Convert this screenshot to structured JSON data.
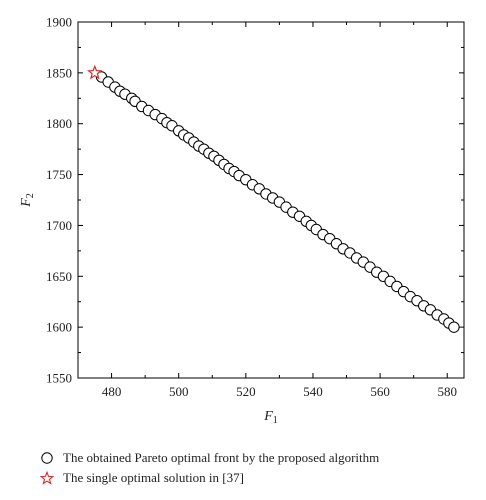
{
  "chart_data": {
    "type": "scatter",
    "xlabel": "F",
    "xlabel_sub": "1",
    "ylabel": "F",
    "ylabel_sub": "2",
    "xlim": [
      470,
      585
    ],
    "ylim": [
      1550,
      1900
    ],
    "xticks": [
      480,
      500,
      520,
      540,
      560,
      580
    ],
    "yticks": [
      1550,
      1600,
      1650,
      1700,
      1750,
      1800,
      1850,
      1900
    ],
    "grid": false,
    "legend_position": "bottom",
    "series": [
      {
        "name": "The obtained Pareto optimal front by the proposed algorithm",
        "marker": "circle",
        "color": "#000000",
        "points": [
          [
            477,
            1846
          ],
          [
            479,
            1841
          ],
          [
            481,
            1836
          ],
          [
            482.5,
            1832
          ],
          [
            484,
            1829
          ],
          [
            486,
            1825
          ],
          [
            487,
            1822
          ],
          [
            489,
            1817
          ],
          [
            491,
            1813
          ],
          [
            493,
            1809
          ],
          [
            495,
            1805
          ],
          [
            496.5,
            1801
          ],
          [
            498,
            1798
          ],
          [
            500,
            1793
          ],
          [
            501.5,
            1789
          ],
          [
            503,
            1786
          ],
          [
            504.5,
            1782
          ],
          [
            506,
            1778
          ],
          [
            507.5,
            1775
          ],
          [
            509,
            1771
          ],
          [
            510.5,
            1768
          ],
          [
            512,
            1764
          ],
          [
            513.5,
            1760
          ],
          [
            515,
            1756
          ],
          [
            516.5,
            1753
          ],
          [
            518,
            1749
          ],
          [
            520,
            1745
          ],
          [
            522,
            1740
          ],
          [
            524,
            1736
          ],
          [
            526,
            1731
          ],
          [
            528,
            1727
          ],
          [
            530,
            1723
          ],
          [
            532,
            1718
          ],
          [
            534,
            1713
          ],
          [
            536,
            1709
          ],
          [
            538,
            1704
          ],
          [
            539.5,
            1700
          ],
          [
            541,
            1696
          ],
          [
            543,
            1691
          ],
          [
            545,
            1687
          ],
          [
            547,
            1682
          ],
          [
            549,
            1677
          ],
          [
            551,
            1673
          ],
          [
            553,
            1668
          ],
          [
            555,
            1664
          ],
          [
            557,
            1659
          ],
          [
            559,
            1654
          ],
          [
            561,
            1650
          ],
          [
            563,
            1645
          ],
          [
            565,
            1640
          ],
          [
            567,
            1635
          ],
          [
            569,
            1630
          ],
          [
            571,
            1626
          ],
          [
            573,
            1621
          ],
          [
            575,
            1617
          ],
          [
            577,
            1612
          ],
          [
            579,
            1608
          ],
          [
            580.5,
            1604
          ],
          [
            582,
            1600
          ]
        ]
      },
      {
        "name": "The single optimal solution in [37]",
        "marker": "star",
        "color": "#d42a2a",
        "points": [
          [
            475,
            1850
          ]
        ]
      }
    ]
  }
}
